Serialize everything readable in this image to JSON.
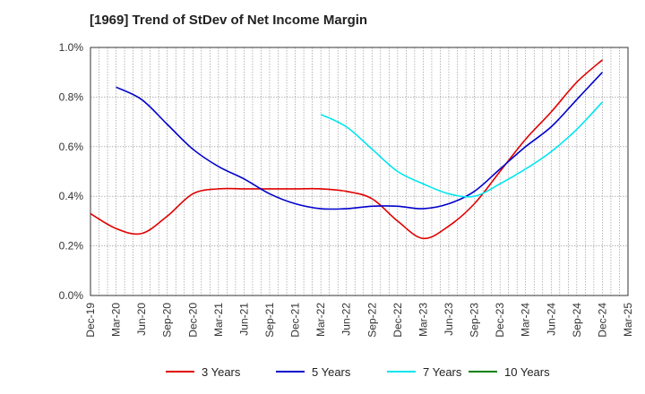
{
  "chart_data": {
    "type": "line",
    "title": "[1969]  Trend of StDev of Net Income Margin",
    "xlabel": "",
    "ylabel": "",
    "x_ticks": [
      "Dec-19",
      "Mar-20",
      "Jun-20",
      "Sep-20",
      "Dec-20",
      "Mar-21",
      "Jun-21",
      "Sep-21",
      "Dec-21",
      "Mar-22",
      "Jun-22",
      "Sep-22",
      "Dec-22",
      "Mar-23",
      "Jun-23",
      "Sep-23",
      "Dec-23",
      "Mar-24",
      "Jun-24",
      "Sep-24",
      "Dec-24",
      "Mar-25"
    ],
    "y_ticks": [
      "0.0%",
      "0.2%",
      "0.4%",
      "0.6%",
      "0.8%",
      "1.0%"
    ],
    "ylim": [
      0,
      1.0
    ],
    "y_unit": "%",
    "grid": "vertical dotted and horizontal dotted",
    "legend_position": "bottom",
    "series": [
      {
        "name": "3 Years",
        "color": "#e00000",
        "x": [
          0,
          1,
          2,
          3,
          4,
          5,
          6,
          7,
          8,
          9,
          10,
          11,
          12,
          13,
          14,
          15,
          16,
          17,
          18,
          19,
          20
        ],
        "values": [
          0.33,
          0.27,
          0.25,
          0.32,
          0.41,
          0.43,
          0.43,
          0.43,
          0.43,
          0.43,
          0.42,
          0.39,
          0.3,
          0.23,
          0.28,
          0.37,
          0.5,
          0.63,
          0.74,
          0.86,
          0.95
        ]
      },
      {
        "name": "5 Years",
        "color": "#0000cc",
        "x": [
          1,
          2,
          3,
          4,
          5,
          6,
          7,
          8,
          9,
          10,
          11,
          12,
          13,
          14,
          15,
          16,
          17,
          18,
          19,
          20
        ],
        "values": [
          0.84,
          0.79,
          0.69,
          0.59,
          0.52,
          0.47,
          0.41,
          0.37,
          0.35,
          0.35,
          0.36,
          0.36,
          0.35,
          0.37,
          0.42,
          0.51,
          0.6,
          0.68,
          0.79,
          0.9
        ]
      },
      {
        "name": "7 Years",
        "color": "#00e5ee",
        "x": [
          9,
          10,
          11,
          12,
          13,
          14,
          15,
          16,
          17,
          18,
          19,
          20
        ],
        "values": [
          0.73,
          0.68,
          0.59,
          0.5,
          0.45,
          0.41,
          0.4,
          0.45,
          0.51,
          0.58,
          0.67,
          0.78
        ]
      },
      {
        "name": "10 Years",
        "color": "#008000",
        "x": [],
        "values": []
      }
    ]
  }
}
